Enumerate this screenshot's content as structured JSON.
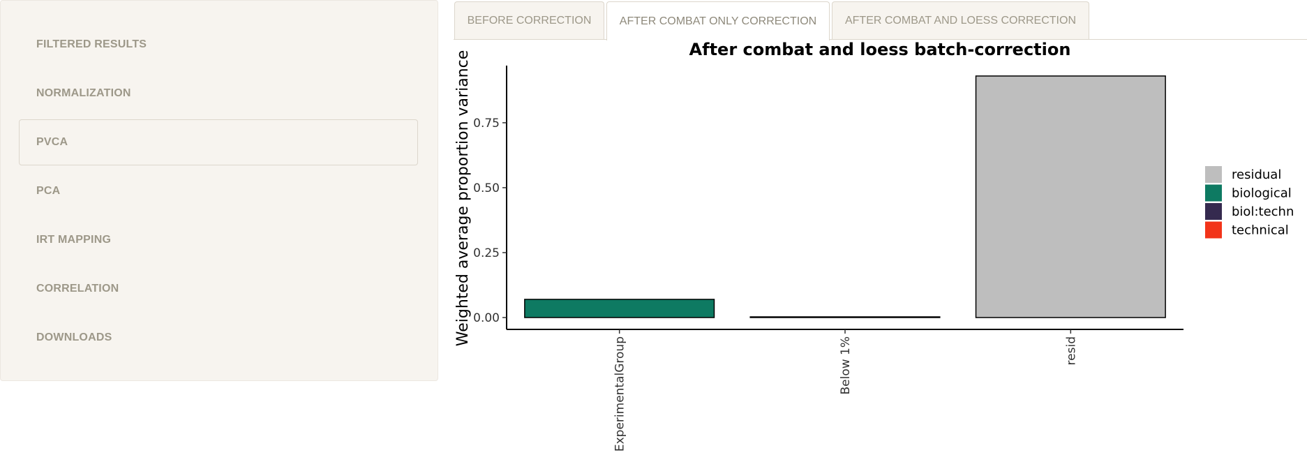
{
  "sidebar": {
    "items": [
      {
        "label": "FILTERED RESULTS",
        "active": false
      },
      {
        "label": "NORMALIZATION",
        "active": false
      },
      {
        "label": "PVCA",
        "active": true
      },
      {
        "label": "PCA",
        "active": false
      },
      {
        "label": "IRT MAPPING",
        "active": false
      },
      {
        "label": "CORRELATION",
        "active": false
      },
      {
        "label": "DOWNLOADS",
        "active": false
      }
    ]
  },
  "tabs": [
    {
      "label": "BEFORE CORRECTION",
      "active": false
    },
    {
      "label": "AFTER COMBAT ONLY CORRECTION",
      "active": true
    },
    {
      "label": "AFTER COMBAT AND LOESS CORRECTION",
      "active": false
    }
  ],
  "chart_data": {
    "type": "bar",
    "title": "After combat and loess batch-correction",
    "xlabel": "",
    "ylabel": "Weighted average proportion variance",
    "categories": [
      "ExperimentalGroup",
      "Below 1%",
      "resid"
    ],
    "values": [
      0.07,
      0.002,
      0.93
    ],
    "bar_groups": [
      "biological",
      "biological",
      "residual"
    ],
    "ylim": [
      0,
      0.97
    ],
    "yticks": [
      "0.00",
      "0.25",
      "0.50",
      "0.75"
    ],
    "ytick_values": [
      0,
      0.25,
      0.5,
      0.75
    ],
    "grid": false,
    "legend": {
      "placement": "right",
      "entries": [
        {
          "label": "residual",
          "color": "#bebebe"
        },
        {
          "label": "biological",
          "color": "#0e7a62"
        },
        {
          "label": "biol:techn",
          "color": "#352a4f"
        },
        {
          "label": "technical",
          "color": "#f2341a"
        }
      ]
    }
  }
}
